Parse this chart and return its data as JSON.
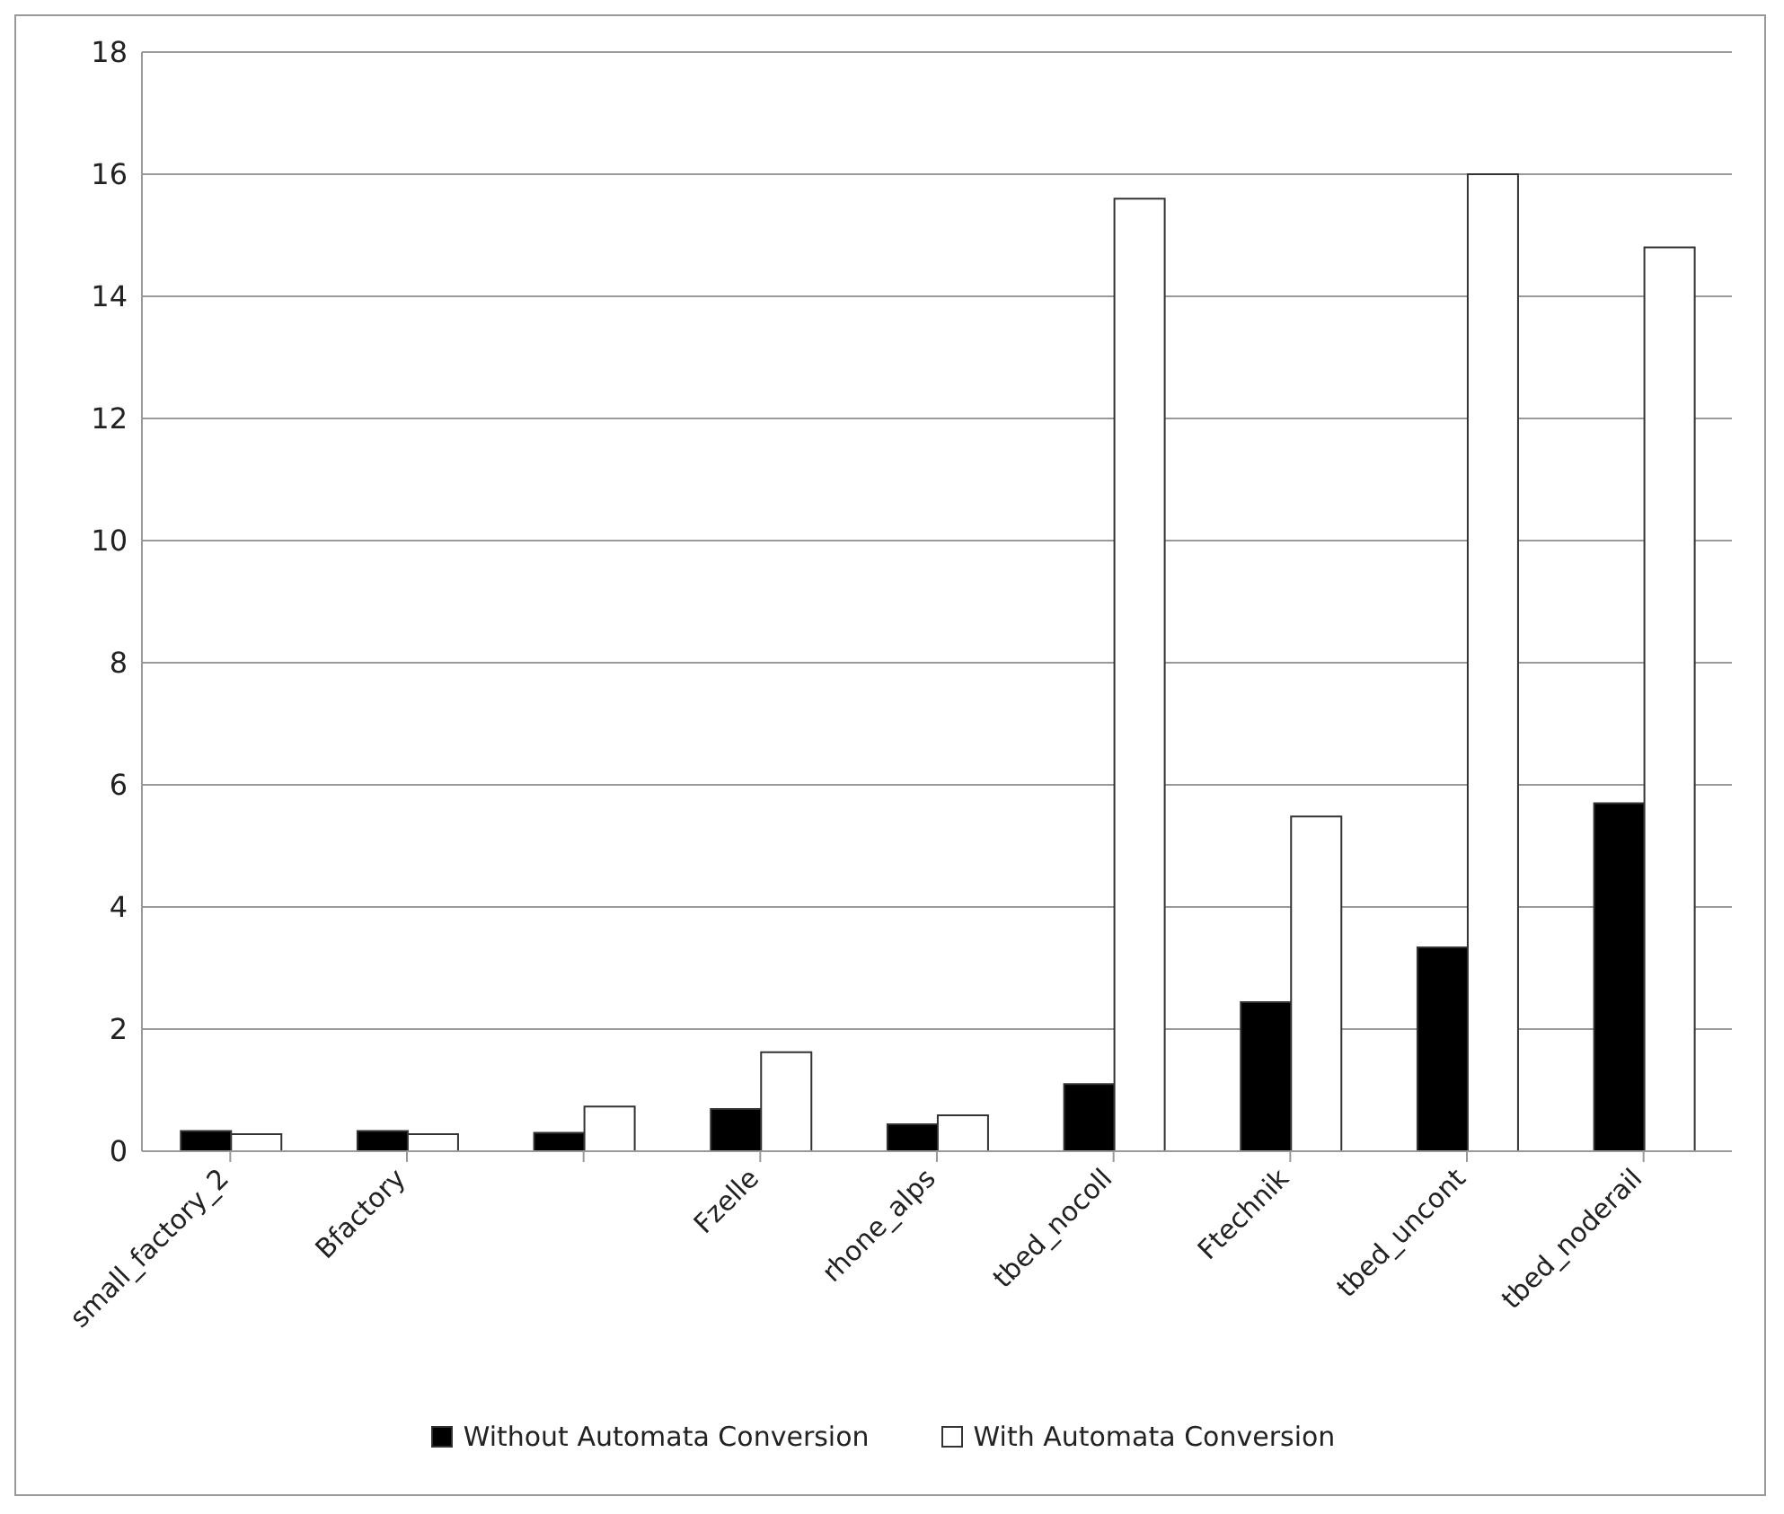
{
  "chart_data": {
    "type": "bar",
    "categories": [
      "small_factory_2",
      "Bfactory",
      null,
      "Fzelle",
      "rhone_alps",
      "tbed_nocoll",
      "Ftechnik",
      "tbed_uncont",
      "tbed_noderail"
    ],
    "series": [
      {
        "name": "Without Automata Conversion",
        "color": "#000000",
        "values": [
          0.33,
          0.33,
          0.3,
          0.69,
          0.44,
          1.1,
          2.44,
          3.34,
          5.7
        ]
      },
      {
        "name": "With Automata Conversion",
        "color": "#ffffff",
        "values": [
          0.28,
          0.28,
          0.73,
          1.62,
          0.59,
          15.6,
          5.48,
          16.0,
          14.8
        ]
      }
    ],
    "ylim": [
      0,
      18
    ],
    "yticks": [
      0,
      2,
      4,
      6,
      8,
      10,
      12,
      14,
      16,
      18
    ],
    "grid": "y",
    "legend": "bottom"
  }
}
